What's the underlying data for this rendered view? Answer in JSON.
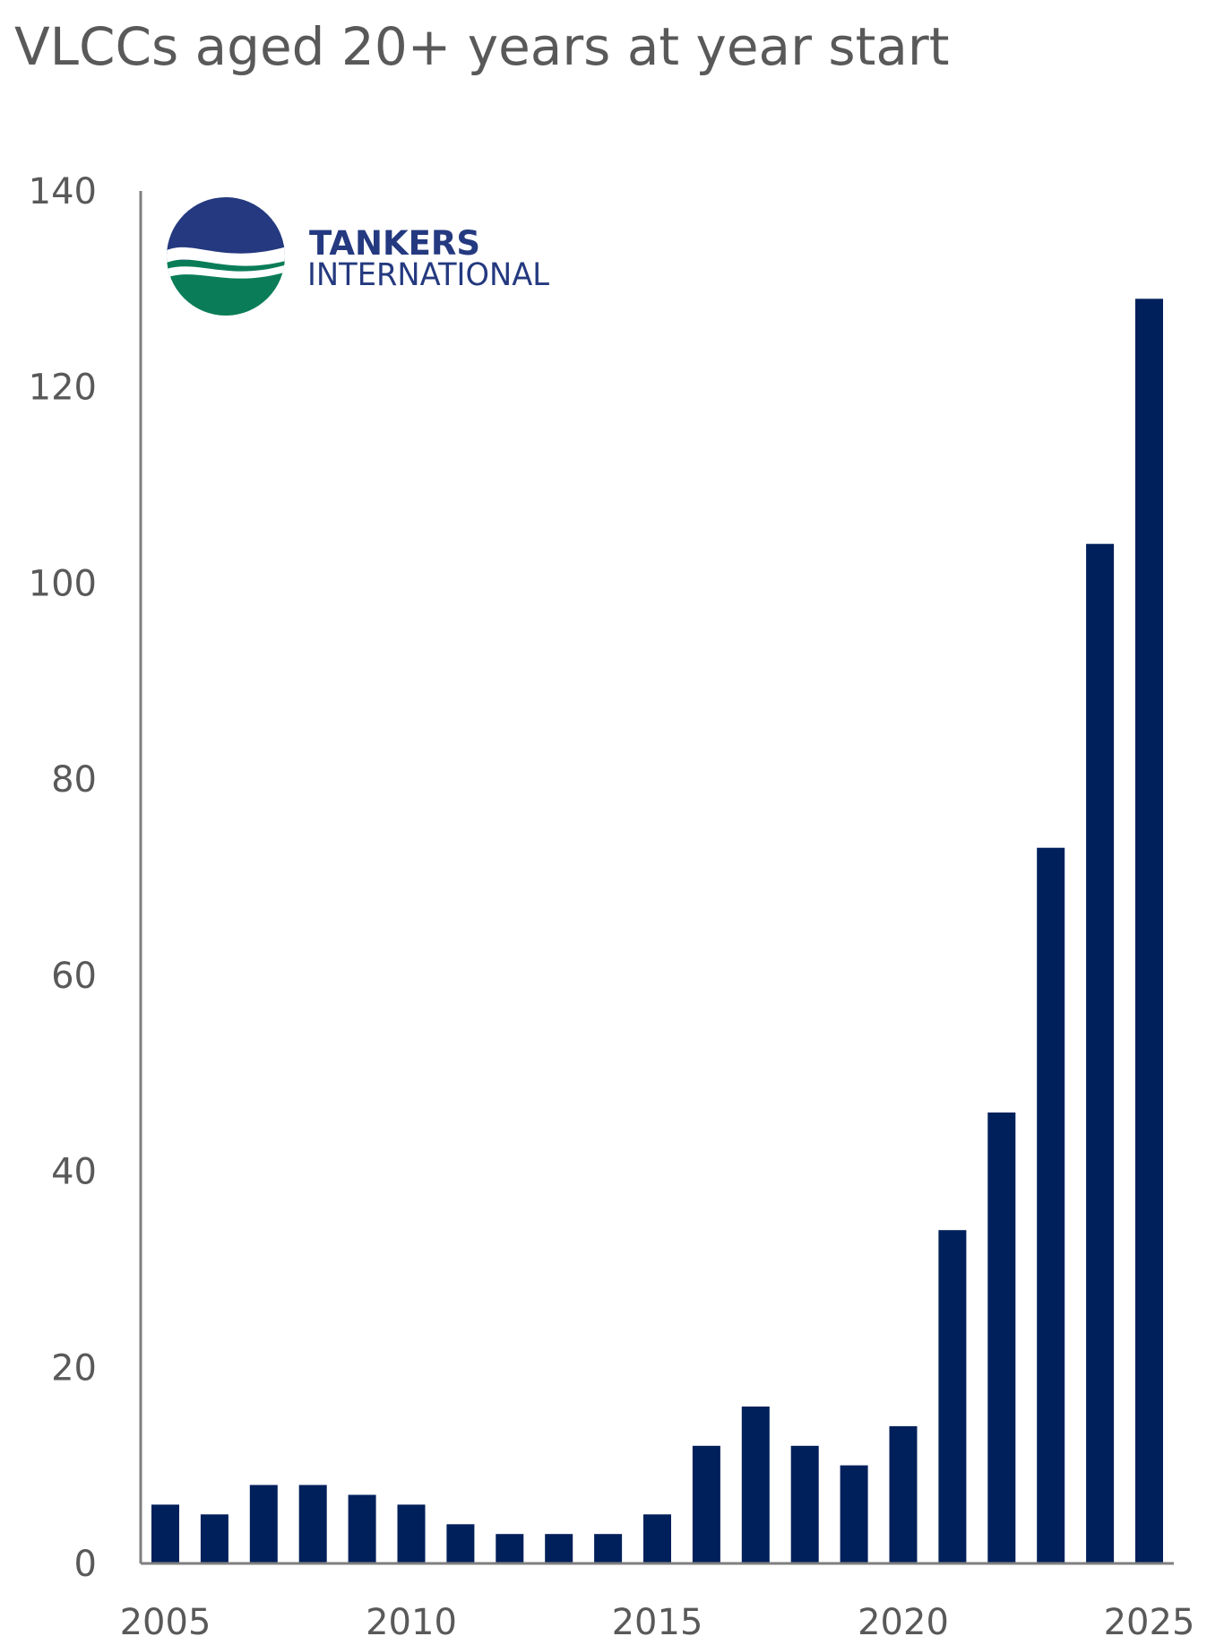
{
  "chart_data": {
    "type": "bar",
    "title": "VLCCs aged 20+ years at year start",
    "xlabel": "",
    "ylabel": "",
    "categories": [
      "2005",
      "2006",
      "2007",
      "2008",
      "2009",
      "2010",
      "2011",
      "2012",
      "2013",
      "2014",
      "2015",
      "2016",
      "2017",
      "2018",
      "2019",
      "2020",
      "2021",
      "2022",
      "2023",
      "2024",
      "2025"
    ],
    "values": [
      6,
      5,
      8,
      8,
      7,
      6,
      4,
      3,
      3,
      3,
      5,
      12,
      16,
      12,
      10,
      14,
      34,
      46,
      73,
      104,
      129
    ],
    "x_tick_labels": [
      "2005",
      "2010",
      "2015",
      "2020",
      "2025"
    ],
    "y_ticks": [
      0,
      20,
      40,
      60,
      80,
      100,
      120,
      140
    ],
    "ylim": [
      0,
      140
    ],
    "grid": false,
    "legend": "none",
    "bar_color": "#00205b"
  },
  "logo": {
    "name": "tankers-international-logo",
    "line1": "TANKERS",
    "line2": "INTERNATIONAL",
    "colors": {
      "blue": "#24397f",
      "green": "#0a7d58"
    }
  }
}
